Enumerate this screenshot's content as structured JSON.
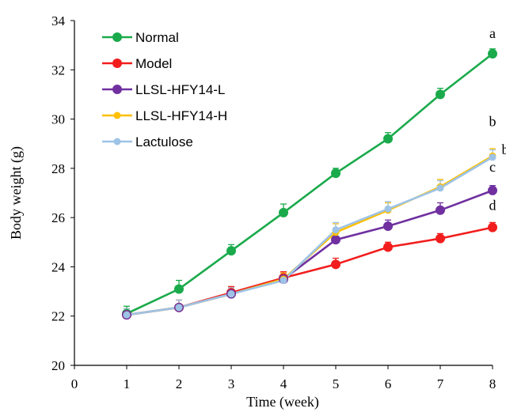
{
  "chart_data": {
    "type": "line",
    "title": "",
    "xlabel": "Time (week)",
    "ylabel": "Body weight (g)",
    "xlim": [
      0,
      8
    ],
    "ylim": [
      20,
      34
    ],
    "x_ticks": [
      0,
      1,
      2,
      3,
      4,
      5,
      6,
      7,
      8
    ],
    "y_ticks": [
      20,
      22,
      24,
      26,
      28,
      30,
      32,
      34
    ],
    "grid": false,
    "legend_position": "top-left",
    "x": [
      1,
      2,
      3,
      4,
      5,
      6,
      7,
      8
    ],
    "series": [
      {
        "name": "Normal",
        "color": "#1aaa4b",
        "marker": "large",
        "values": [
          22.1,
          23.1,
          24.65,
          26.2,
          27.8,
          29.2,
          31.0,
          32.65
        ],
        "error": [
          0.3,
          0.35,
          0.25,
          0.35,
          0.2,
          0.25,
          0.25,
          0.2
        ],
        "significance": "a"
      },
      {
        "name": "Model",
        "color": "#f21d1d",
        "marker": "large",
        "values": [
          22.05,
          22.35,
          22.95,
          23.55,
          24.1,
          24.8,
          25.15,
          25.6
        ],
        "error": [
          0.25,
          0.3,
          0.25,
          0.25,
          0.25,
          0.2,
          0.2,
          0.2
        ],
        "significance": "d"
      },
      {
        "name": "LLSL-HFY14-L",
        "color": "#7030a0",
        "marker": "large",
        "values": [
          22.05,
          22.35,
          22.9,
          23.5,
          25.1,
          25.65,
          26.3,
          27.1
        ],
        "error": [
          0.25,
          0.3,
          0.25,
          0.25,
          0.25,
          0.25,
          0.3,
          0.2
        ],
        "significance": "c"
      },
      {
        "name": "LLSL-HFY14-H",
        "color": "#ffc000",
        "marker": "small",
        "values": [
          22.05,
          22.35,
          22.9,
          23.5,
          25.4,
          26.3,
          27.25,
          28.5
        ],
        "error": [
          0.25,
          0.3,
          0.25,
          0.25,
          0.35,
          0.3,
          0.3,
          0.3
        ],
        "significance": "b"
      },
      {
        "name": "Lactulose",
        "color": "#9dc3e6",
        "marker": "small",
        "values": [
          22.05,
          22.35,
          22.9,
          23.45,
          25.5,
          26.35,
          27.2,
          28.45
        ],
        "error": [
          0.25,
          0.3,
          0.25,
          0.25,
          0.3,
          0.3,
          0.3,
          0.3
        ],
        "significance": "b"
      }
    ]
  }
}
